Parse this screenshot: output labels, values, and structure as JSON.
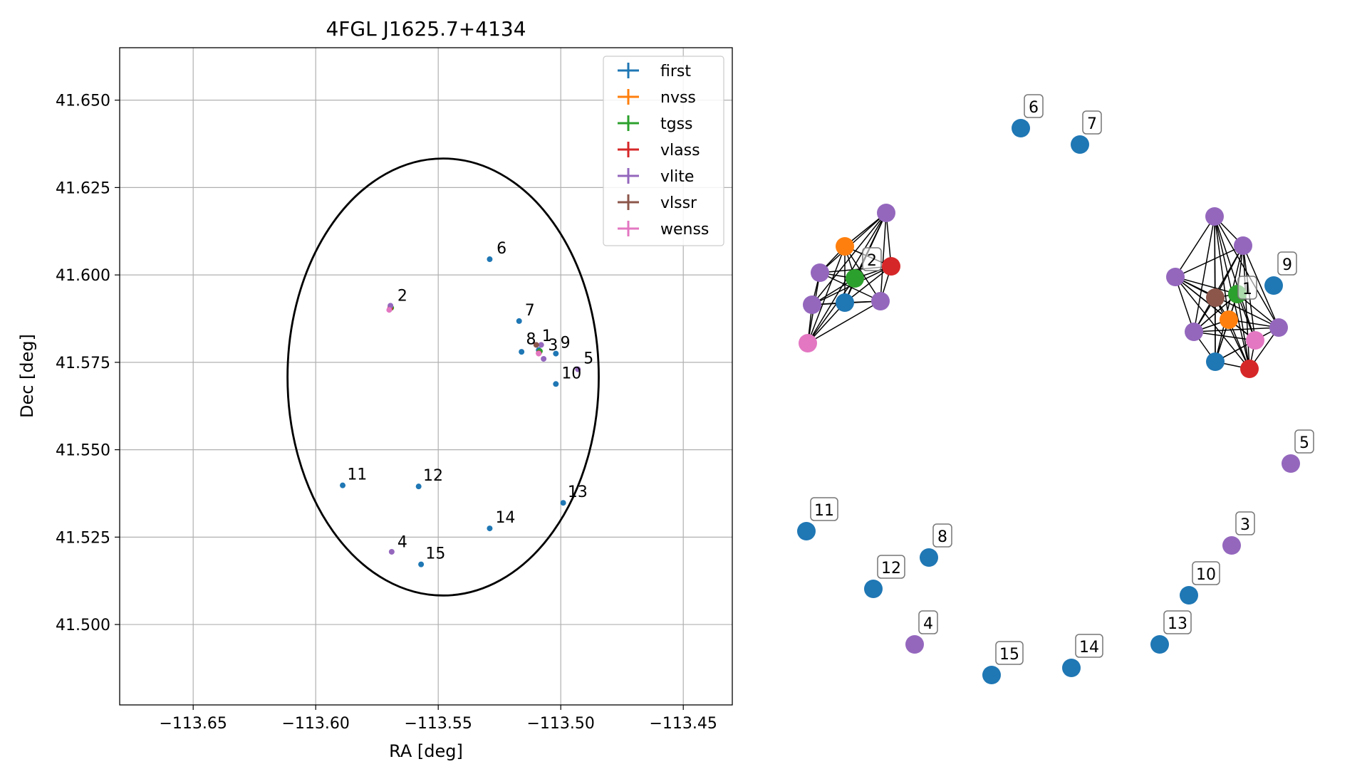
{
  "chart_data": [
    {
      "type": "scatter",
      "title": "4FGL J1625.7+4134",
      "xlabel": "RA [deg]",
      "ylabel": "Dec [deg]",
      "xlim": [
        -113.68,
        -113.43
      ],
      "ylim": [
        41.477,
        41.665
      ],
      "xticks": [
        -113.65,
        -113.6,
        -113.55,
        -113.5,
        -113.45
      ],
      "xtick_labels": [
        "−113.65",
        "−113.60",
        "−113.55",
        "−113.50",
        "−113.45"
      ],
      "yticks": [
        41.5,
        41.525,
        41.55,
        41.575,
        41.6,
        41.625,
        41.65
      ],
      "ytick_labels": [
        "41.500",
        "41.525",
        "41.550",
        "41.575",
        "41.600",
        "41.625",
        "41.650"
      ],
      "grid": true,
      "legend_position": "top-right",
      "ellipse": {
        "center": [
          -113.548,
          41.5708
        ],
        "ra_semi_axis": 0.0635,
        "dec_semi_axis": 0.0625
      },
      "series": [
        {
          "name": "first",
          "color": "#1f77b4",
          "points": [
            [
              -113.529,
              41.6045
            ],
            [
              -113.517,
              41.5868
            ],
            [
              -113.516,
              41.578
            ],
            [
              -113.502,
              41.5775
            ],
            [
              -113.502,
              41.5688
            ],
            [
              -113.589,
              41.5398
            ],
            [
              -113.558,
              41.5395
            ],
            [
              -113.499,
              41.5348
            ],
            [
              -113.529,
              41.5275
            ],
            [
              -113.557,
              41.5172
            ],
            [
              -113.509,
              41.5785
            ]
          ]
        },
        {
          "name": "nvss",
          "color": "#ff7f0e",
          "points": [
            [
              -113.5088,
              41.5778
            ],
            [
              -113.5695,
              41.5908
            ]
          ]
        },
        {
          "name": "tgss",
          "color": "#2ca02c",
          "points": [
            [
              -113.5085,
              41.5782
            ],
            [
              -113.5692,
              41.5906
            ]
          ]
        },
        {
          "name": "vlass",
          "color": "#d62728",
          "points": [
            [
              -113.509,
              41.5776
            ],
            [
              -113.5696,
              41.5905
            ]
          ]
        },
        {
          "name": "vlite",
          "color": "#9467bd",
          "points": [
            [
              -113.508,
              41.58
            ],
            [
              -113.507,
              41.576
            ],
            [
              -113.493,
              41.573
            ],
            [
              -113.569,
              41.5208
            ],
            [
              -113.5695,
              41.5912
            ]
          ]
        },
        {
          "name": "vlssr",
          "color": "#8c564b",
          "points": [
            [
              -113.51,
              41.58
            ]
          ]
        },
        {
          "name": "wenss",
          "color": "#e377c2",
          "points": [
            [
              -113.509,
              41.5775
            ],
            [
              -113.57,
              41.59
            ]
          ]
        }
      ],
      "annotations": [
        {
          "text": "6",
          "x": -113.5285,
          "y": 41.6045
        },
        {
          "text": "2",
          "x": -113.569,
          "y": 41.591
        },
        {
          "text": "7",
          "x": -113.517,
          "y": 41.5868
        },
        {
          "text": "8",
          "x": -113.5165,
          "y": 41.5785
        },
        {
          "text": "1",
          "x": -113.51,
          "y": 41.5795
        },
        {
          "text": "3",
          "x": -113.5075,
          "y": 41.5768
        },
        {
          "text": "9",
          "x": -113.5025,
          "y": 41.5775
        },
        {
          "text": "5",
          "x": -113.493,
          "y": 41.573
        },
        {
          "text": "10",
          "x": -113.502,
          "y": 41.5688
        },
        {
          "text": "11",
          "x": -113.5895,
          "y": 41.5398
        },
        {
          "text": "12",
          "x": -113.5585,
          "y": 41.5395
        },
        {
          "text": "13",
          "x": -113.4995,
          "y": 41.5348
        },
        {
          "text": "14",
          "x": -113.529,
          "y": 41.5275
        },
        {
          "text": "4",
          "x": -113.569,
          "y": 41.5205
        },
        {
          "text": "15",
          "x": -113.5575,
          "y": 41.5172
        }
      ]
    },
    {
      "type": "network",
      "nodes": [
        {
          "id": "g2-first",
          "group": 2,
          "color": "#1f77b4"
        },
        {
          "id": "g2-nvss",
          "group": 2,
          "color": "#ff7f0e"
        },
        {
          "id": "g2-tgss",
          "group": 2,
          "color": "#2ca02c"
        },
        {
          "id": "g2-vlass",
          "group": 2,
          "color": "#d62728"
        },
        {
          "id": "g2-vlite-a",
          "group": 2,
          "color": "#9467bd"
        },
        {
          "id": "g2-vlite-b",
          "group": 2,
          "color": "#9467bd"
        },
        {
          "id": "g2-vlite-c",
          "group": 2,
          "color": "#9467bd"
        },
        {
          "id": "g2-vlite-d",
          "group": 2,
          "color": "#9467bd"
        },
        {
          "id": "g2-wenss",
          "group": 2,
          "color": "#e377c2"
        },
        {
          "id": "g1-vlssr",
          "group": 1,
          "color": "#8c564b"
        },
        {
          "id": "g1-tgss",
          "group": 1,
          "color": "#2ca02c"
        },
        {
          "id": "g1-nvss",
          "group": 1,
          "color": "#ff7f0e"
        },
        {
          "id": "g1-first",
          "group": 1,
          "color": "#1f77b4"
        },
        {
          "id": "g1-vlass",
          "group": 1,
          "color": "#d62728"
        },
        {
          "id": "g1-wenss",
          "group": 1,
          "color": "#e377c2"
        },
        {
          "id": "g1-vlite-a",
          "group": 1,
          "color": "#9467bd"
        },
        {
          "id": "g1-vlite-b",
          "group": 1,
          "color": "#9467bd"
        },
        {
          "id": "g1-vlite-c",
          "group": 1,
          "color": "#9467bd"
        },
        {
          "id": "g1-vlite-d",
          "group": 1,
          "color": "#9467bd"
        },
        {
          "id": "g1-vlite-e",
          "group": 1,
          "color": "#9467bd"
        },
        {
          "id": "s6",
          "group": 6,
          "color": "#1f77b4"
        },
        {
          "id": "s7",
          "group": 7,
          "color": "#1f77b4"
        },
        {
          "id": "s9",
          "group": 9,
          "color": "#1f77b4"
        },
        {
          "id": "s5",
          "group": 5,
          "color": "#9467bd"
        },
        {
          "id": "s3",
          "group": 3,
          "color": "#9467bd"
        },
        {
          "id": "s10",
          "group": 10,
          "color": "#1f77b4"
        },
        {
          "id": "s13",
          "group": 13,
          "color": "#1f77b4"
        },
        {
          "id": "s14",
          "group": 14,
          "color": "#1f77b4"
        },
        {
          "id": "s15",
          "group": 15,
          "color": "#1f77b4"
        },
        {
          "id": "s4",
          "group": 4,
          "color": "#9467bd"
        },
        {
          "id": "s12",
          "group": 12,
          "color": "#1f77b4"
        },
        {
          "id": "s8",
          "group": 8,
          "color": "#1f77b4"
        },
        {
          "id": "s11",
          "group": 11,
          "color": "#1f77b4"
        }
      ],
      "group_labels": [
        {
          "text": "2",
          "group": 2
        },
        {
          "text": "1",
          "group": 1
        },
        {
          "text": "6",
          "group": 6
        },
        {
          "text": "7",
          "group": 7
        },
        {
          "text": "9",
          "group": 9
        },
        {
          "text": "5",
          "group": 5
        },
        {
          "text": "3",
          "group": 3
        },
        {
          "text": "10",
          "group": 10
        },
        {
          "text": "13",
          "group": 13
        },
        {
          "text": "14",
          "group": 14
        },
        {
          "text": "15",
          "group": 15
        },
        {
          "text": "4",
          "group": 4
        },
        {
          "text": "12",
          "group": 12
        },
        {
          "text": "8",
          "group": 8
        },
        {
          "text": "11",
          "group": 11
        }
      ]
    }
  ]
}
